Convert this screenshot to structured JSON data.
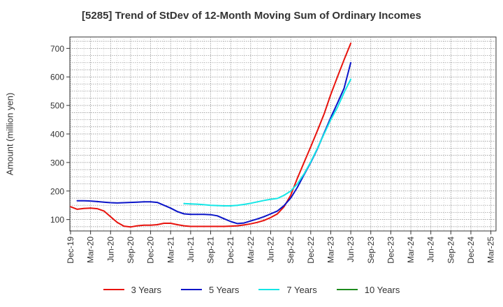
{
  "chart_data": {
    "type": "line",
    "title": "[5285]  Trend of StDev of 12-Month Moving Sum of Ordinary Incomes",
    "xlabel": "",
    "ylabel": "Amount (million yen)",
    "ylim": [
      60,
      740
    ],
    "yticks": [
      100,
      200,
      300,
      400,
      500,
      600,
      700
    ],
    "grid": true,
    "legend_position": "bottom",
    "x_tick_labels": [
      "Dec-19",
      "Mar-20",
      "Jun-20",
      "Sep-20",
      "Dec-20",
      "Mar-21",
      "Jun-21",
      "Sep-21",
      "Dec-21",
      "Mar-22",
      "Jun-22",
      "Sep-22",
      "Dec-22",
      "Mar-23",
      "Jun-23",
      "Sep-23",
      "Dec-23",
      "Mar-24",
      "Jun-24",
      "Sep-24",
      "Dec-24",
      "Mar-25"
    ],
    "series": [
      {
        "name": "3 Years",
        "color": "#e8120c",
        "values": [
          145,
          136,
          139,
          140,
          138,
          130,
          110,
          90,
          77,
          74,
          78,
          80,
          80,
          82,
          87,
          87,
          82,
          78,
          76,
          76,
          76,
          76,
          76,
          76,
          77,
          78,
          81,
          85,
          90,
          97,
          107,
          120,
          145,
          185,
          245,
          300,
          355,
          412,
          470,
          538,
          600,
          660,
          718
        ]
      },
      {
        "name": "5 Years",
        "color": "#0a14c8",
        "values": [
          null,
          166,
          166,
          165,
          163,
          161,
          159,
          158,
          159,
          160,
          161,
          162,
          162,
          160,
          150,
          140,
          128,
          120,
          118,
          118,
          118,
          117,
          113,
          103,
          93,
          86,
          88,
          95,
          102,
          110,
          120,
          130,
          149,
          175,
          213,
          257,
          300,
          348,
          403,
          457,
          508,
          560,
          650
        ]
      },
      {
        "name": "7 Years",
        "color": "#14e6e6",
        "values": [
          null,
          null,
          null,
          null,
          null,
          null,
          null,
          null,
          null,
          null,
          null,
          null,
          null,
          null,
          null,
          null,
          null,
          156,
          155,
          154,
          152,
          150,
          149,
          148,
          148,
          150,
          153,
          157,
          162,
          167,
          171,
          174,
          185,
          200,
          225,
          260,
          302,
          350,
          400,
          450,
          493,
          545,
          592
        ]
      },
      {
        "name": "10 Years",
        "color": "#1e8c1e",
        "values": []
      }
    ]
  }
}
